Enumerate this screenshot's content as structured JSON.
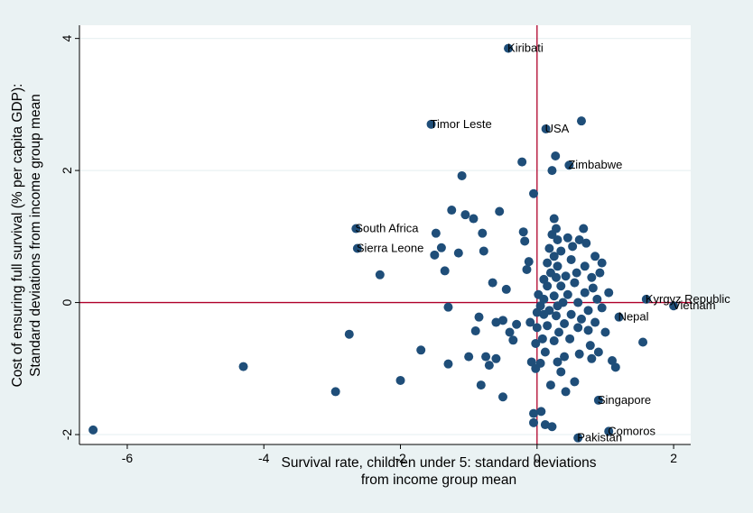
{
  "chart_data": {
    "type": "scatter",
    "xlabel": [
      "Survival rate, children under 5: standard deviations",
      "from income group mean"
    ],
    "ylabel": [
      "Cost of ensuring full survival (% per capita GDP):",
      "Standard deviations from income group mean"
    ],
    "xlim": [
      -6.7,
      2.25
    ],
    "ylim": [
      -2.15,
      4.2
    ],
    "xticks": [
      -6,
      -4,
      -2,
      0,
      2
    ],
    "yticks": [
      -2,
      0,
      2,
      4
    ],
    "grid": "horizontal",
    "reference_lines": {
      "x": 0,
      "y": 0,
      "color": "#b0002a"
    },
    "colors": {
      "background": "#eaf2f3",
      "plot_background": "#ffffff",
      "marker": "#1f4e79",
      "grid": "#eaf2f3"
    },
    "labeled_points": [
      {
        "label": "Kiribati",
        "x": -0.42,
        "y": 3.85
      },
      {
        "label": "Timor Leste",
        "x": -1.55,
        "y": 2.7
      },
      {
        "label": "USA",
        "x": 0.13,
        "y": 2.63
      },
      {
        "label": "Zimbabwe",
        "x": 0.47,
        "y": 2.08
      },
      {
        "label": "South Africa",
        "x": -2.65,
        "y": 1.12
      },
      {
        "label": "Sierra Leone",
        "x": -2.63,
        "y": 0.82
      },
      {
        "label": "Kyrgyz Republic",
        "x": 1.6,
        "y": 0.05
      },
      {
        "label": "Vietnam",
        "x": 2.0,
        "y": -0.05
      },
      {
        "label": "Nepal",
        "x": 1.2,
        "y": -0.22
      },
      {
        "label": "Singapore",
        "x": 0.9,
        "y": -1.48
      },
      {
        "label": "Comoros",
        "x": 1.05,
        "y": -1.95
      },
      {
        "label": "Pakistan",
        "x": 0.6,
        "y": -2.05
      }
    ],
    "points": [
      {
        "x": -6.5,
        "y": -1.93
      },
      {
        "x": -4.3,
        "y": -0.97
      },
      {
        "x": -2.95,
        "y": -1.35
      },
      {
        "x": -2.75,
        "y": -0.48
      },
      {
        "x": -2.3,
        "y": 0.42
      },
      {
        "x": -2.0,
        "y": -1.18
      },
      {
        "x": -1.7,
        "y": -0.72
      },
      {
        "x": -1.5,
        "y": 0.72
      },
      {
        "x": -1.48,
        "y": 1.05
      },
      {
        "x": -1.4,
        "y": 0.83
      },
      {
        "x": -1.35,
        "y": 0.48
      },
      {
        "x": -1.3,
        "y": -0.93
      },
      {
        "x": -1.3,
        "y": -0.07
      },
      {
        "x": -1.25,
        "y": 1.4
      },
      {
        "x": -1.15,
        "y": 0.75
      },
      {
        "x": -1.1,
        "y": 1.92
      },
      {
        "x": -1.05,
        "y": 1.33
      },
      {
        "x": -1.0,
        "y": -0.82
      },
      {
        "x": -0.93,
        "y": 1.27
      },
      {
        "x": -0.9,
        "y": -0.43
      },
      {
        "x": -0.85,
        "y": -0.22
      },
      {
        "x": -0.82,
        "y": -1.25
      },
      {
        "x": -0.8,
        "y": 1.05
      },
      {
        "x": -0.78,
        "y": 0.78
      },
      {
        "x": -0.75,
        "y": -0.82
      },
      {
        "x": -0.7,
        "y": -0.95
      },
      {
        "x": -0.65,
        "y": 0.3
      },
      {
        "x": -0.6,
        "y": -0.85
      },
      {
        "x": -0.6,
        "y": -0.3
      },
      {
        "x": -0.55,
        "y": 1.38
      },
      {
        "x": -0.5,
        "y": -1.43
      },
      {
        "x": -0.5,
        "y": -0.27
      },
      {
        "x": -0.45,
        "y": 0.2
      },
      {
        "x": -0.4,
        "y": -0.45
      },
      {
        "x": -0.35,
        "y": -0.57
      },
      {
        "x": -0.3,
        "y": -0.33
      },
      {
        "x": -0.22,
        "y": 2.13
      },
      {
        "x": -0.2,
        "y": 1.07
      },
      {
        "x": -0.18,
        "y": 0.93
      },
      {
        "x": -0.15,
        "y": 0.5
      },
      {
        "x": -0.12,
        "y": 0.62
      },
      {
        "x": -0.1,
        "y": -0.3
      },
      {
        "x": -0.08,
        "y": -0.9
      },
      {
        "x": -0.05,
        "y": 1.65
      },
      {
        "x": -0.05,
        "y": -1.68
      },
      {
        "x": -0.05,
        "y": -1.82
      },
      {
        "x": -0.02,
        "y": -0.62
      },
      {
        "x": -0.02,
        "y": -1.0
      },
      {
        "x": 0.0,
        "y": -0.15
      },
      {
        "x": 0.0,
        "y": -0.38
      },
      {
        "x": 0.02,
        "y": 0.12
      },
      {
        "x": 0.05,
        "y": -0.05
      },
      {
        "x": 0.05,
        "y": -0.92
      },
      {
        "x": 0.06,
        "y": -1.65
      },
      {
        "x": 0.08,
        "y": -0.55
      },
      {
        "x": 0.1,
        "y": 0.35
      },
      {
        "x": 0.1,
        "y": 0.05
      },
      {
        "x": 0.1,
        "y": -0.18
      },
      {
        "x": 0.12,
        "y": -0.75
      },
      {
        "x": 0.12,
        "y": -1.85
      },
      {
        "x": 0.15,
        "y": 0.6
      },
      {
        "x": 0.15,
        "y": 0.25
      },
      {
        "x": 0.15,
        "y": -0.35
      },
      {
        "x": 0.18,
        "y": 0.82
      },
      {
        "x": 0.18,
        "y": -0.12
      },
      {
        "x": 0.2,
        "y": 0.45
      },
      {
        "x": 0.2,
        "y": -1.25
      },
      {
        "x": 0.22,
        "y": 1.03
      },
      {
        "x": 0.22,
        "y": 2.0
      },
      {
        "x": 0.22,
        "y": -1.88
      },
      {
        "x": 0.25,
        "y": 1.27
      },
      {
        "x": 0.25,
        "y": 0.7
      },
      {
        "x": 0.25,
        "y": 0.1
      },
      {
        "x": 0.25,
        "y": -0.58
      },
      {
        "x": 0.27,
        "y": 2.22
      },
      {
        "x": 0.28,
        "y": 1.12
      },
      {
        "x": 0.28,
        "y": 0.38
      },
      {
        "x": 0.28,
        "y": -0.2
      },
      {
        "x": 0.3,
        "y": 0.95
      },
      {
        "x": 0.3,
        "y": 0.55
      },
      {
        "x": 0.3,
        "y": -0.05
      },
      {
        "x": 0.3,
        "y": -0.9
      },
      {
        "x": 0.32,
        "y": -0.45
      },
      {
        "x": 0.35,
        "y": 0.25
      },
      {
        "x": 0.35,
        "y": 0.78
      },
      {
        "x": 0.35,
        "y": -1.05
      },
      {
        "x": 0.38,
        "y": 0.0
      },
      {
        "x": 0.4,
        "y": -0.32
      },
      {
        "x": 0.4,
        "y": -0.82
      },
      {
        "x": 0.42,
        "y": 0.4
      },
      {
        "x": 0.42,
        "y": -1.35
      },
      {
        "x": 0.45,
        "y": 0.98
      },
      {
        "x": 0.45,
        "y": 0.12
      },
      {
        "x": 0.48,
        "y": -0.55
      },
      {
        "x": 0.5,
        "y": 0.65
      },
      {
        "x": 0.5,
        "y": -0.18
      },
      {
        "x": 0.52,
        "y": 0.85
      },
      {
        "x": 0.55,
        "y": -1.2
      },
      {
        "x": 0.55,
        "y": 0.3
      },
      {
        "x": 0.58,
        "y": 0.45
      },
      {
        "x": 0.6,
        "y": -0.38
      },
      {
        "x": 0.6,
        "y": 0.0
      },
      {
        "x": 0.62,
        "y": 0.95
      },
      {
        "x": 0.62,
        "y": -0.78
      },
      {
        "x": 0.65,
        "y": 2.75
      },
      {
        "x": 0.65,
        "y": -0.25
      },
      {
        "x": 0.68,
        "y": 1.12
      },
      {
        "x": 0.7,
        "y": 0.55
      },
      {
        "x": 0.7,
        "y": 0.15
      },
      {
        "x": 0.72,
        "y": 0.9
      },
      {
        "x": 0.75,
        "y": -0.12
      },
      {
        "x": 0.75,
        "y": -0.42
      },
      {
        "x": 0.78,
        "y": -0.65
      },
      {
        "x": 0.8,
        "y": 0.38
      },
      {
        "x": 0.8,
        "y": -0.85
      },
      {
        "x": 0.82,
        "y": 0.22
      },
      {
        "x": 0.85,
        "y": 0.7
      },
      {
        "x": 0.85,
        "y": -0.3
      },
      {
        "x": 0.88,
        "y": 0.05
      },
      {
        "x": 0.9,
        "y": -0.75
      },
      {
        "x": 0.92,
        "y": 0.45
      },
      {
        "x": 0.95,
        "y": -0.08
      },
      {
        "x": 0.95,
        "y": 0.6
      },
      {
        "x": 1.0,
        "y": -0.45
      },
      {
        "x": 1.05,
        "y": 0.15
      },
      {
        "x": 1.1,
        "y": -0.88
      },
      {
        "x": 1.15,
        "y": -0.98
      },
      {
        "x": 1.55,
        "y": -0.6
      }
    ]
  }
}
